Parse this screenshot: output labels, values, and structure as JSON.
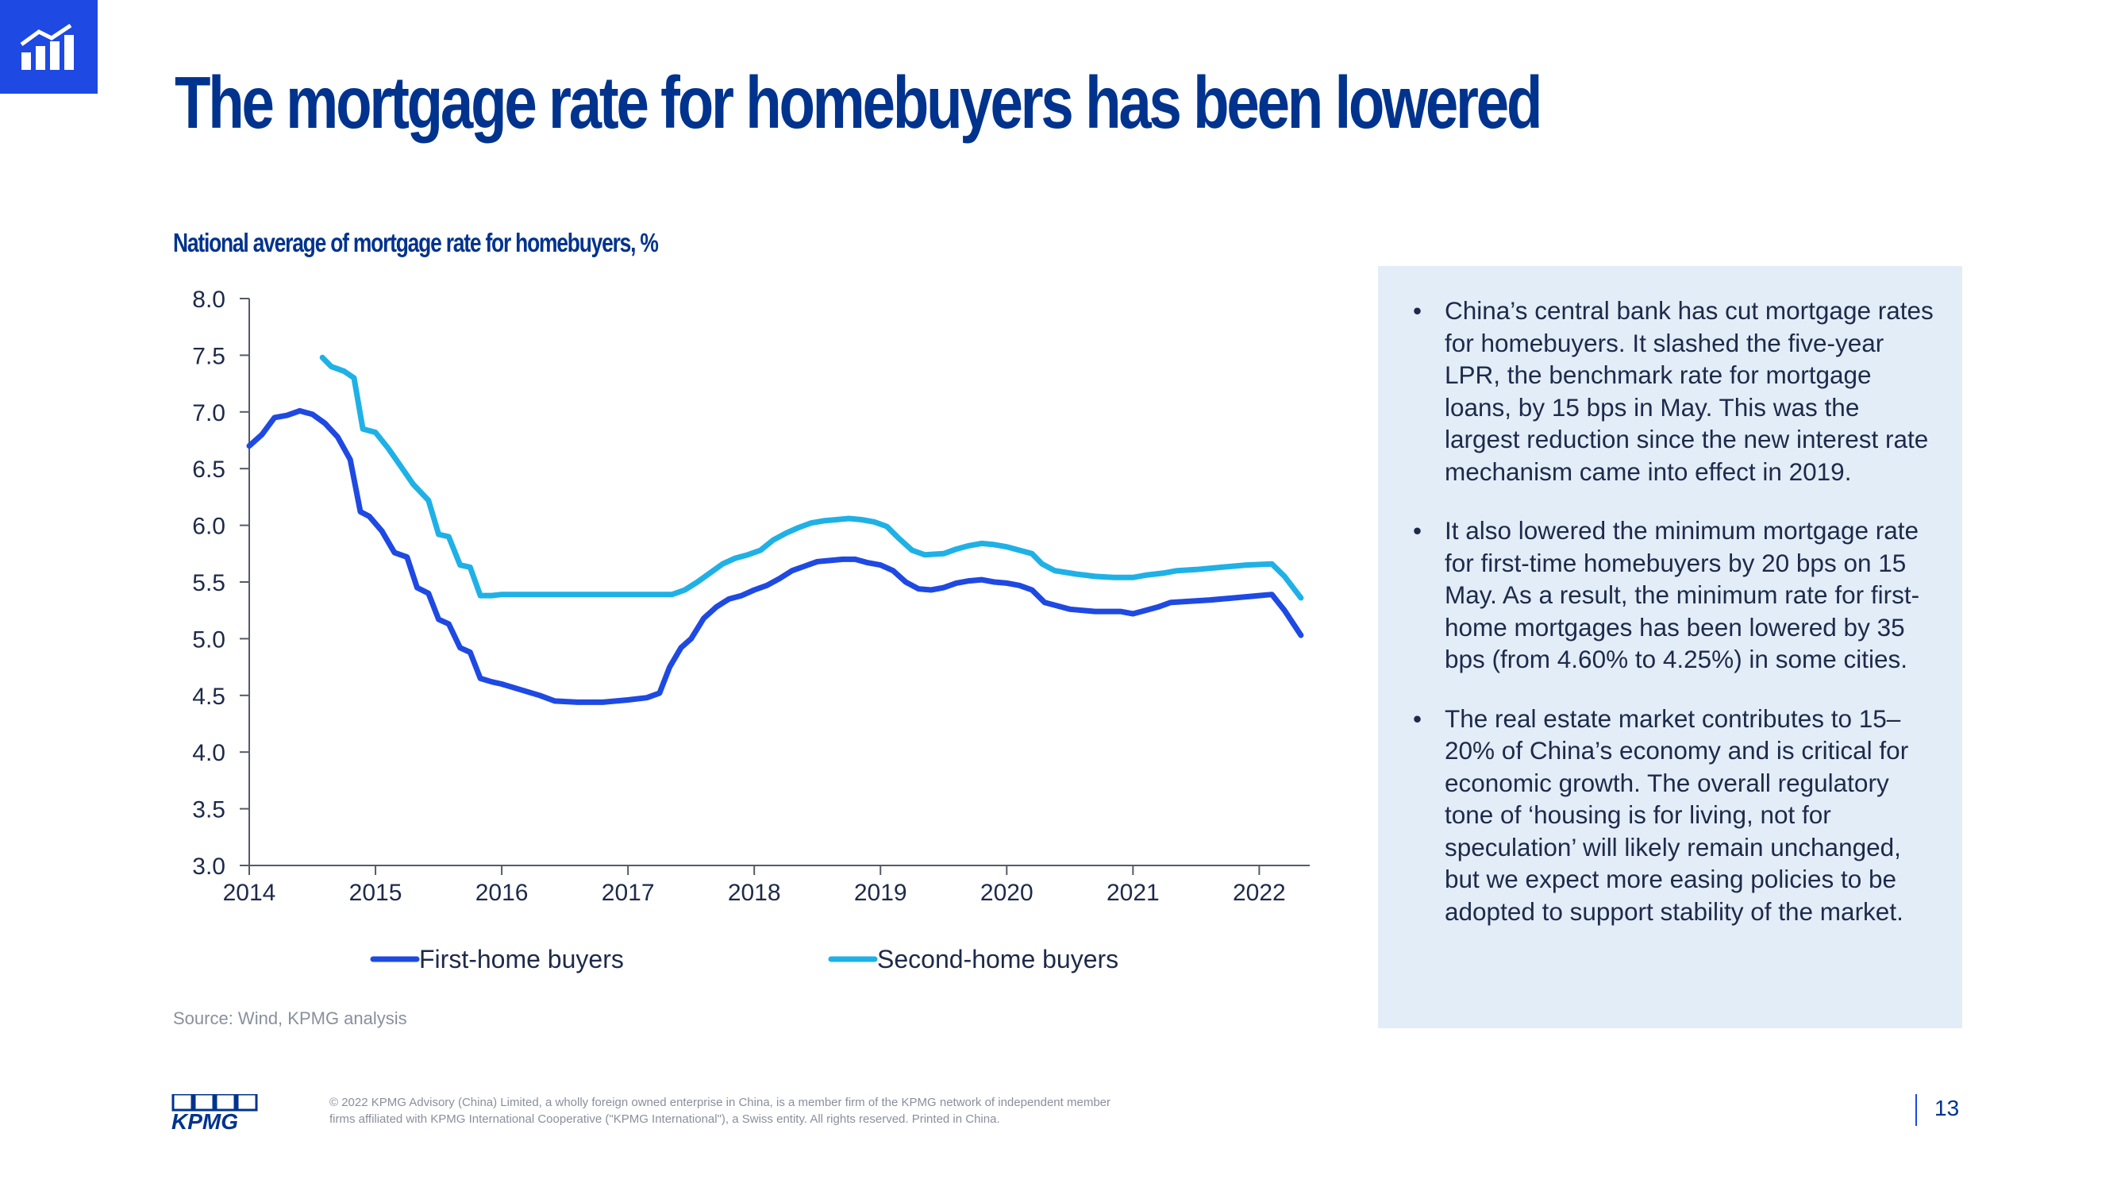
{
  "slide": {
    "title": "The mortgage rate for homebuyers has been lowered",
    "chart_subtitle": "National average of mortgage rate for homebuyers, %",
    "source": "Source: Wind, KPMG analysis",
    "page_number": "13",
    "logo_text": "KPMG",
    "legal": "© 2022 KPMG Advisory (China) Limited, a wholly foreign owned enterprise in China, is a member firm of the KPMG network of independent member firms affiliated with KPMG International Cooperative (\"KPMG International\"), a Swiss entity. All rights reserved. Printed in China."
  },
  "bullets": [
    "China’s central bank has cut mortgage rates for homebuyers. It slashed the five-year LPR, the benchmark rate for mortgage loans, by 15 bps in May. This was the largest reduction since the new interest rate mechanism came into effect in 2019.",
    "It also lowered the minimum mortgage rate for first-time homebuyers by 20 bps on 15 May. As a result, the minimum rate for first-home mortgages has been lowered by 35 bps (from 4.60% to 4.25%) in some cities.",
    "The real estate market contributes to 15–20% of China’s economy and is critical for economic growth. The overall regulatory tone of ‘housing is for living, not for speculation’ will likely remain unchanged, but we expect more easing policies to be adopted to support stability of the market."
  ],
  "colors": {
    "brand_blue": "#00338d",
    "accent_blue": "#1e49e2",
    "series_first": "#1e49e2",
    "series_second": "#1fb1e6",
    "panel_bg": "#e3edf8"
  },
  "chart_data": {
    "type": "line",
    "title": "National average of mortgage rate for homebuyers, %",
    "xlabel": "",
    "ylabel": "",
    "xlim": [
      2014,
      2022.4
    ],
    "ylim": [
      3.0,
      8.0
    ],
    "y_ticks": [
      3.0,
      3.5,
      4.0,
      4.5,
      5.0,
      5.5,
      6.0,
      6.5,
      7.0,
      7.5,
      8.0
    ],
    "x_ticks": [
      2014,
      2015,
      2016,
      2017,
      2018,
      2019,
      2020,
      2021,
      2022
    ],
    "grid": false,
    "legend": "bottom",
    "series": [
      {
        "name": "First-home buyers",
        "color": "#1e49e2",
        "points": [
          [
            2014.0,
            6.7
          ],
          [
            2014.1,
            6.8
          ],
          [
            2014.2,
            6.95
          ],
          [
            2014.3,
            6.97
          ],
          [
            2014.4,
            7.01
          ],
          [
            2014.5,
            6.98
          ],
          [
            2014.6,
            6.9
          ],
          [
            2014.7,
            6.78
          ],
          [
            2014.8,
            6.58
          ],
          [
            2014.88,
            6.12
          ],
          [
            2014.95,
            6.08
          ],
          [
            2015.05,
            5.95
          ],
          [
            2015.15,
            5.76
          ],
          [
            2015.25,
            5.72
          ],
          [
            2015.33,
            5.45
          ],
          [
            2015.42,
            5.4
          ],
          [
            2015.5,
            5.17
          ],
          [
            2015.58,
            5.13
          ],
          [
            2015.67,
            4.92
          ],
          [
            2015.75,
            4.88
          ],
          [
            2015.83,
            4.65
          ],
          [
            2015.92,
            4.62
          ],
          [
            2016.0,
            4.6
          ],
          [
            2016.15,
            4.55
          ],
          [
            2016.3,
            4.5
          ],
          [
            2016.42,
            4.45
          ],
          [
            2016.6,
            4.44
          ],
          [
            2016.8,
            4.44
          ],
          [
            2017.0,
            4.46
          ],
          [
            2017.15,
            4.48
          ],
          [
            2017.25,
            4.52
          ],
          [
            2017.33,
            4.75
          ],
          [
            2017.42,
            4.92
          ],
          [
            2017.5,
            5.0
          ],
          [
            2017.6,
            5.18
          ],
          [
            2017.7,
            5.28
          ],
          [
            2017.8,
            5.35
          ],
          [
            2017.9,
            5.38
          ],
          [
            2018.0,
            5.43
          ],
          [
            2018.1,
            5.47
          ],
          [
            2018.2,
            5.53
          ],
          [
            2018.3,
            5.6
          ],
          [
            2018.4,
            5.64
          ],
          [
            2018.5,
            5.68
          ],
          [
            2018.6,
            5.69
          ],
          [
            2018.7,
            5.7
          ],
          [
            2018.8,
            5.7
          ],
          [
            2018.9,
            5.67
          ],
          [
            2019.0,
            5.65
          ],
          [
            2019.1,
            5.6
          ],
          [
            2019.2,
            5.5
          ],
          [
            2019.3,
            5.44
          ],
          [
            2019.4,
            5.43
          ],
          [
            2019.5,
            5.45
          ],
          [
            2019.6,
            5.49
          ],
          [
            2019.7,
            5.51
          ],
          [
            2019.8,
            5.52
          ],
          [
            2019.9,
            5.5
          ],
          [
            2020.0,
            5.49
          ],
          [
            2020.1,
            5.47
          ],
          [
            2020.2,
            5.43
          ],
          [
            2020.3,
            5.32
          ],
          [
            2020.4,
            5.29
          ],
          [
            2020.5,
            5.26
          ],
          [
            2020.7,
            5.24
          ],
          [
            2020.9,
            5.24
          ],
          [
            2021.0,
            5.22
          ],
          [
            2021.1,
            5.25
          ],
          [
            2021.2,
            5.28
          ],
          [
            2021.3,
            5.32
          ],
          [
            2021.45,
            5.33
          ],
          [
            2021.6,
            5.34
          ],
          [
            2021.8,
            5.36
          ],
          [
            2022.0,
            5.38
          ],
          [
            2022.1,
            5.39
          ],
          [
            2022.2,
            5.25
          ],
          [
            2022.33,
            5.03
          ]
        ]
      },
      {
        "name": "Second-home buyers",
        "color": "#1fb1e6",
        "points": [
          [
            2014.58,
            7.48
          ],
          [
            2014.65,
            7.4
          ],
          [
            2014.75,
            7.36
          ],
          [
            2014.83,
            7.3
          ],
          [
            2014.9,
            6.85
          ],
          [
            2015.0,
            6.82
          ],
          [
            2015.1,
            6.68
          ],
          [
            2015.2,
            6.52
          ],
          [
            2015.3,
            6.36
          ],
          [
            2015.42,
            6.22
          ],
          [
            2015.5,
            5.92
          ],
          [
            2015.58,
            5.9
          ],
          [
            2015.67,
            5.65
          ],
          [
            2015.75,
            5.63
          ],
          [
            2015.83,
            5.38
          ],
          [
            2015.92,
            5.38
          ],
          [
            2016.0,
            5.39
          ],
          [
            2016.5,
            5.39
          ],
          [
            2017.0,
            5.39
          ],
          [
            2017.35,
            5.39
          ],
          [
            2017.45,
            5.43
          ],
          [
            2017.55,
            5.5
          ],
          [
            2017.65,
            5.58
          ],
          [
            2017.75,
            5.66
          ],
          [
            2017.85,
            5.71
          ],
          [
            2017.95,
            5.74
          ],
          [
            2018.05,
            5.78
          ],
          [
            2018.15,
            5.87
          ],
          [
            2018.25,
            5.93
          ],
          [
            2018.35,
            5.98
          ],
          [
            2018.45,
            6.02
          ],
          [
            2018.55,
            6.04
          ],
          [
            2018.65,
            6.05
          ],
          [
            2018.75,
            6.06
          ],
          [
            2018.85,
            6.05
          ],
          [
            2018.95,
            6.03
          ],
          [
            2019.05,
            5.99
          ],
          [
            2019.15,
            5.88
          ],
          [
            2019.25,
            5.78
          ],
          [
            2019.35,
            5.74
          ],
          [
            2019.5,
            5.75
          ],
          [
            2019.6,
            5.79
          ],
          [
            2019.7,
            5.82
          ],
          [
            2019.8,
            5.84
          ],
          [
            2019.9,
            5.83
          ],
          [
            2020.0,
            5.81
          ],
          [
            2020.1,
            5.78
          ],
          [
            2020.2,
            5.75
          ],
          [
            2020.28,
            5.66
          ],
          [
            2020.38,
            5.6
          ],
          [
            2020.55,
            5.57
          ],
          [
            2020.7,
            5.55
          ],
          [
            2020.85,
            5.54
          ],
          [
            2021.0,
            5.54
          ],
          [
            2021.1,
            5.56
          ],
          [
            2021.25,
            5.58
          ],
          [
            2021.35,
            5.6
          ],
          [
            2021.5,
            5.61
          ],
          [
            2021.7,
            5.63
          ],
          [
            2021.9,
            5.65
          ],
          [
            2022.1,
            5.66
          ],
          [
            2022.2,
            5.55
          ],
          [
            2022.33,
            5.36
          ]
        ]
      }
    ]
  }
}
